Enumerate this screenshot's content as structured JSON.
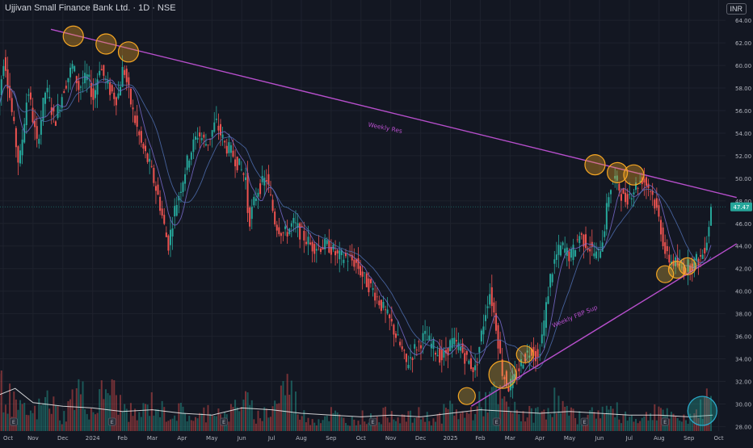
{
  "header": {
    "title": "Ujjivan Small Finance Bank Ltd. · 1D · NSE",
    "currency": "INR"
  },
  "colors": {
    "bg": "#131722",
    "grid": "#1e222d",
    "up": "#26a69a",
    "down": "#ef5350",
    "trend": "#b74fcc",
    "circle": "#f5a623",
    "circleFill": "#f5c542",
    "text": "#b2b5be",
    "lastPrice": "#26a69a",
    "ma1": "#7a6ccf",
    "ma2": "#4f6fb0",
    "vol": "#ffffff"
  },
  "chart_data": {
    "type": "candlestick",
    "title": "Ujjivan Small Finance Bank Ltd. · 1D · NSE",
    "currency": "INR",
    "y_ticks": [
      28,
      30,
      32,
      34,
      36,
      38,
      40,
      42,
      44,
      46,
      48,
      50,
      52,
      54,
      56,
      58,
      60,
      62,
      64
    ],
    "y_labels": [
      "28.00",
      "30.00",
      "32.00",
      "34.00",
      "36.00",
      "38.00",
      "40.00",
      "42.00",
      "44.00",
      "46.00",
      "48.00",
      "50.00",
      "52.00",
      "54.00",
      "56.00",
      "58.00",
      "60.00",
      "62.00",
      "64.00"
    ],
    "ylim": [
      27.6,
      65.8
    ],
    "x_labels": [
      "Oct",
      "Nov",
      "Dec",
      "2024",
      "Feb",
      "Mar",
      "Apr",
      "May",
      "Jun",
      "Jul",
      "Aug",
      "Sep",
      "Oct",
      "Nov",
      "Dec",
      "2025",
      "Feb",
      "Mar",
      "Apr",
      "May",
      "Jun",
      "Jul",
      "Aug",
      "Sep",
      "Oct"
    ],
    "x_months": [
      0,
      1,
      2,
      3,
      4,
      5,
      6,
      7,
      8,
      9,
      10,
      11,
      12,
      13,
      14,
      15,
      16,
      17,
      18,
      19,
      20,
      21,
      22,
      23,
      24
    ],
    "last_price": {
      "value": 47.47,
      "label": "47.47"
    },
    "price_path": [
      [
        -0.2,
        54
      ],
      [
        0.1,
        61
      ],
      [
        0.4,
        55
      ],
      [
        0.6,
        51
      ],
      [
        0.9,
        58
      ],
      [
        1.2,
        53
      ],
      [
        1.5,
        58
      ],
      [
        1.8,
        55
      ],
      [
        2.1,
        58
      ],
      [
        2.4,
        60
      ],
      [
        2.6,
        58
      ],
      [
        2.9,
        59
      ],
      [
        3.1,
        57
      ],
      [
        3.3,
        60
      ],
      [
        3.6,
        58
      ],
      [
        3.9,
        57
      ],
      [
        4.1,
        60
      ],
      [
        4.4,
        56
      ],
      [
        4.7,
        53
      ],
      [
        5.0,
        51
      ],
      [
        5.3,
        48
      ],
      [
        5.6,
        44
      ],
      [
        5.8,
        47
      ],
      [
        6.0,
        49
      ],
      [
        6.3,
        52
      ],
      [
        6.6,
        54
      ],
      [
        6.9,
        53
      ],
      [
        7.2,
        55
      ],
      [
        7.5,
        53
      ],
      [
        7.8,
        52
      ],
      [
        8.0,
        51
      ],
      [
        8.2,
        50
      ],
      [
        8.3,
        46
      ],
      [
        8.6,
        49
      ],
      [
        8.9,
        50
      ],
      [
        9.2,
        46
      ],
      [
        9.5,
        45
      ],
      [
        9.8,
        46
      ],
      [
        10.1,
        45
      ],
      [
        10.4,
        44
      ],
      [
        10.7,
        44
      ],
      [
        11.0,
        44
      ],
      [
        11.3,
        43
      ],
      [
        11.6,
        43
      ],
      [
        11.9,
        42.5
      ],
      [
        12.2,
        41
      ],
      [
        12.5,
        40
      ],
      [
        12.8,
        38.5
      ],
      [
        13.1,
        37
      ],
      [
        13.4,
        35
      ],
      [
        13.6,
        33.5
      ],
      [
        13.9,
        35
      ],
      [
        14.2,
        36
      ],
      [
        14.5,
        35
      ],
      [
        14.8,
        34
      ],
      [
        15.1,
        35.5
      ],
      [
        15.4,
        35
      ],
      [
        15.6,
        34
      ],
      [
        15.9,
        33
      ],
      [
        16.1,
        36
      ],
      [
        16.3,
        39
      ],
      [
        16.4,
        40
      ],
      [
        16.6,
        37
      ],
      [
        16.8,
        33
      ],
      [
        17.0,
        31.5
      ],
      [
        17.2,
        32
      ],
      [
        17.5,
        34
      ],
      [
        17.8,
        35
      ],
      [
        18.0,
        34
      ],
      [
        18.2,
        37
      ],
      [
        18.4,
        41
      ],
      [
        18.6,
        43
      ],
      [
        18.8,
        44
      ],
      [
        19.1,
        43
      ],
      [
        19.4,
        45
      ],
      [
        19.7,
        44
      ],
      [
        20.0,
        43
      ],
      [
        20.2,
        45
      ],
      [
        20.4,
        49
      ],
      [
        20.6,
        50
      ],
      [
        20.9,
        48
      ],
      [
        21.2,
        49
      ],
      [
        21.5,
        50
      ],
      [
        21.8,
        49
      ],
      [
        22.1,
        46
      ],
      [
        22.3,
        43
      ],
      [
        22.6,
        42.5
      ],
      [
        22.9,
        42
      ],
      [
        23.2,
        42.5
      ],
      [
        23.5,
        43
      ],
      [
        23.7,
        45
      ],
      [
        23.8,
        47.5
      ]
    ],
    "volume": [
      [
        0,
        2.2
      ],
      [
        0.5,
        1.2
      ],
      [
        1,
        0.9
      ],
      [
        1.5,
        1.8
      ],
      [
        2,
        0.7
      ],
      [
        2.5,
        2.4
      ],
      [
        3,
        1.0
      ],
      [
        3.5,
        2.6
      ],
      [
        4,
        1.3
      ],
      [
        4.5,
        0.8
      ],
      [
        5,
        1.6
      ],
      [
        5.5,
        0.9
      ],
      [
        6,
        1.1
      ],
      [
        6.5,
        0.6
      ],
      [
        7,
        1.4
      ],
      [
        7.5,
        0.7
      ],
      [
        8,
        1.9
      ],
      [
        8.5,
        0.8
      ],
      [
        9,
        1.2
      ],
      [
        9.5,
        2.7
      ],
      [
        10,
        0.9
      ],
      [
        10.5,
        0.6
      ],
      [
        11,
        1.0
      ],
      [
        11.5,
        0.5
      ],
      [
        12,
        0.8
      ],
      [
        12.5,
        0.6
      ],
      [
        13,
        1.1
      ],
      [
        13.5,
        0.7
      ],
      [
        14,
        0.9
      ],
      [
        14.5,
        0.6
      ],
      [
        15,
        1.3
      ],
      [
        15.5,
        0.8
      ],
      [
        16,
        1.5
      ],
      [
        16.5,
        2.0
      ],
      [
        17,
        1.2
      ],
      [
        17.5,
        0.9
      ],
      [
        18,
        1.0
      ],
      [
        18.5,
        1.7
      ],
      [
        19,
        0.9
      ],
      [
        19.5,
        0.7
      ],
      [
        20,
        1.2
      ],
      [
        20.5,
        1.1
      ],
      [
        21,
        0.8
      ],
      [
        21.5,
        0.7
      ],
      [
        22,
        1.4
      ],
      [
        22.5,
        0.6
      ],
      [
        23,
        0.8
      ],
      [
        23.5,
        1.3
      ],
      [
        23.8,
        3.2
      ]
    ],
    "volume_line": [
      [
        -0.2,
        2.0
      ],
      [
        0.4,
        2.4
      ],
      [
        1.0,
        1.6
      ],
      [
        2.0,
        1.4
      ],
      [
        3.0,
        1.3
      ],
      [
        4.0,
        1.1
      ],
      [
        5.0,
        1.2
      ],
      [
        6.0,
        1.0
      ],
      [
        7.0,
        0.9
      ],
      [
        8.0,
        1.3
      ],
      [
        9.0,
        1.2
      ],
      [
        10.0,
        1.0
      ],
      [
        11.0,
        0.9
      ],
      [
        12.0,
        0.8
      ],
      [
        13.0,
        0.9
      ],
      [
        14.0,
        0.8
      ],
      [
        15.0,
        1.0
      ],
      [
        16.0,
        1.2
      ],
      [
        17.0,
        1.1
      ],
      [
        18.0,
        1.0
      ],
      [
        19.0,
        1.1
      ],
      [
        20.0,
        1.0
      ],
      [
        21.0,
        0.9
      ],
      [
        22.0,
        0.9
      ],
      [
        23.0,
        0.8
      ],
      [
        23.8,
        0.9
      ]
    ],
    "trendlines": [
      {
        "name": "Weekly Res",
        "from": [
          1.6,
          63.2
        ],
        "to": [
          24.6,
          48.3
        ],
        "label_at": [
          12.8,
          54.3
        ],
        "label_angle": 11
      },
      {
        "name": "Weekly FBP Sup",
        "from": [
          15.7,
          29.8
        ],
        "to": [
          24.6,
          44.2
        ],
        "label_at": [
          19.2,
          37.6
        ],
        "label_angle": -23
      }
    ],
    "highlights": [
      {
        "kind": "res",
        "x": 2.35,
        "y": 62.6
      },
      {
        "kind": "res",
        "x": 3.45,
        "y": 61.9
      },
      {
        "kind": "res",
        "x": 4.2,
        "y": 61.2
      },
      {
        "kind": "res",
        "x": 19.85,
        "y": 51.2
      },
      {
        "kind": "res",
        "x": 20.6,
        "y": 50.5
      },
      {
        "kind": "res",
        "x": 21.15,
        "y": 50.3
      },
      {
        "kind": "sup",
        "x": 15.55,
        "y": 30.7
      },
      {
        "kind": "sup_big",
        "x": 16.75,
        "y": 32.6
      },
      {
        "kind": "sup",
        "x": 17.5,
        "y": 34.4
      },
      {
        "kind": "sup",
        "x": 22.2,
        "y": 41.5
      },
      {
        "kind": "sup",
        "x": 22.6,
        "y": 41.9
      },
      {
        "kind": "sup",
        "x": 22.95,
        "y": 42.2
      }
    ],
    "volume_highlight": {
      "x": 23.45
    },
    "earnings_markers": [
      0.35,
      3.65,
      7.4,
      12.4,
      16.55,
      19.5,
      22.2
    ],
    "earnings_label": "E"
  }
}
